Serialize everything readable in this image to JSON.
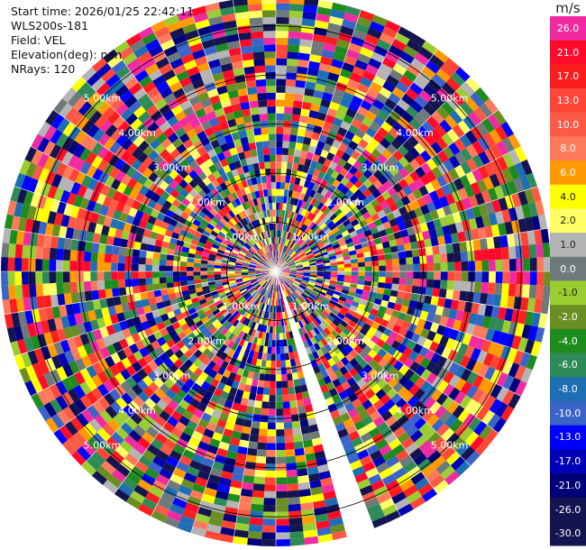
{
  "info": {
    "start_time": "Start time: 2026/01/25 22:42:11",
    "instrument": "WLS200s-181",
    "field": "Field: VEL",
    "elevation": "Elevation(deg): nan",
    "nrays": "NRays: 120"
  },
  "colorbar": {
    "unit": "m/s",
    "levels": [
      {
        "label": "26.0",
        "color": "#f02aa0"
      },
      {
        "label": "21.0",
        "color": "#ff0a2a"
      },
      {
        "label": "17.0",
        "color": "#fb1e1e"
      },
      {
        "label": "13.0",
        "color": "#ff4637"
      },
      {
        "label": "10.0",
        "color": "#fb5a46"
      },
      {
        "label": "8.0",
        "color": "#ff7a5a"
      },
      {
        "label": "6.0",
        "color": "#ff9a00"
      },
      {
        "label": "4.0",
        "color": "#ffff00"
      },
      {
        "label": "2.0",
        "color": "#ffff66"
      },
      {
        "label": "1.0",
        "color": "#b4b4b4"
      },
      {
        "label": "0.0",
        "color": "#6e7a7a"
      },
      {
        "label": "-1.0",
        "color": "#9acd32"
      },
      {
        "label": "-2.0",
        "color": "#6b8e23"
      },
      {
        "label": "-4.0",
        "color": "#1e8b1e"
      },
      {
        "label": "-6.0",
        "color": "#2e8b57"
      },
      {
        "label": "-8.0",
        "color": "#1e6eb4"
      },
      {
        "label": "-10.0",
        "color": "#3a64c8"
      },
      {
        "label": "-13.0",
        "color": "#0000ff"
      },
      {
        "label": "-17.0",
        "color": "#0000b4"
      },
      {
        "label": "-21.0",
        "color": "#000078"
      },
      {
        "label": "-26.0",
        "color": "#141450"
      },
      {
        "label": "-30.0",
        "color": "#141450"
      }
    ]
  },
  "chart_data": {
    "type": "heatmap",
    "field": "VEL",
    "units": "m/s",
    "n_rays": 120,
    "range_rings": [
      "1.00km",
      "2.00km",
      "3.00km",
      "4.00km",
      "5.00km"
    ],
    "range_rings_km": [
      1,
      2,
      3,
      4,
      5
    ],
    "max_range_km": 5.6,
    "missing_sector_deg": [
      160,
      166
    ],
    "vmin": -30,
    "vmax": 30
  }
}
